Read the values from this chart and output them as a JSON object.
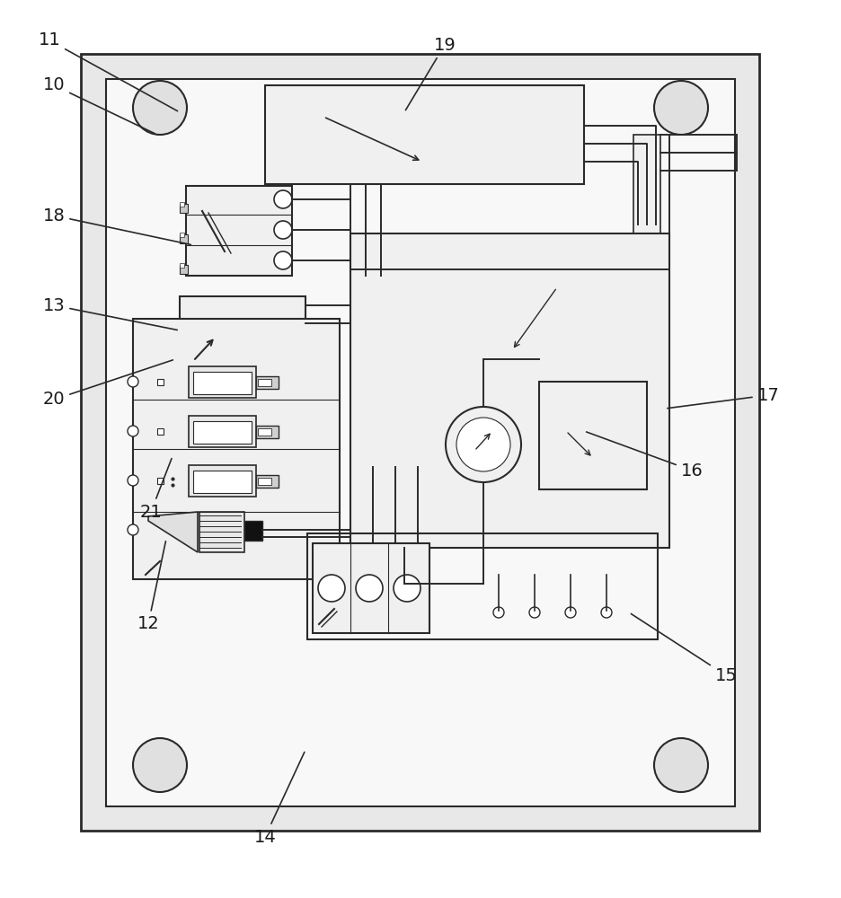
{
  "fig_w": 9.36,
  "fig_h": 10.0,
  "dpi": 100,
  "lc": "#2a2a2a",
  "lw": 1.4,
  "bg": "#ffffff",
  "board_fill": "#f0f0f0",
  "label_data": [
    [
      "11",
      55,
      955,
      200,
      875
    ],
    [
      "10",
      60,
      905,
      175,
      850
    ],
    [
      "18",
      60,
      760,
      215,
      727
    ],
    [
      "13",
      60,
      660,
      200,
      632
    ],
    [
      "20",
      60,
      555,
      195,
      600
    ],
    [
      "21",
      168,
      430,
      192,
      492
    ],
    [
      "12",
      165,
      305,
      185,
      400
    ],
    [
      "14",
      295,
      68,
      340,
      165
    ],
    [
      "19",
      495,
      950,
      450,
      875
    ],
    [
      "17",
      855,
      560,
      740,
      545
    ],
    [
      "16",
      770,
      476,
      650,
      520
    ],
    [
      "15",
      808,
      248,
      700,
      318
    ]
  ]
}
